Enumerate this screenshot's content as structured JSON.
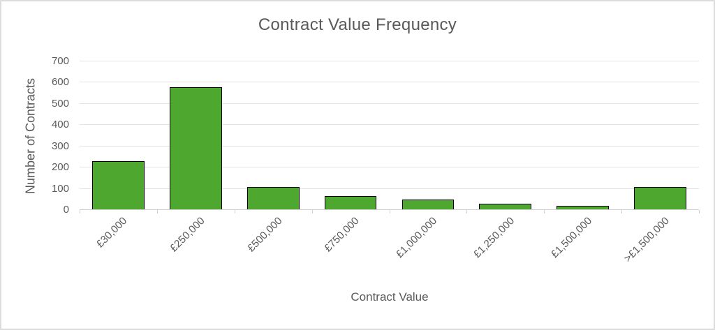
{
  "chart_data": {
    "type": "bar",
    "title": "Contract Value Frequency",
    "xlabel": "Contract Value",
    "ylabel": "Number of Contracts",
    "categories": [
      "£30,000",
      "£250,000",
      "£500,000",
      "£750,000",
      "£1,000,000",
      "£1,250,000",
      "£1,500,000",
      ">£1,500,000"
    ],
    "values": [
      230,
      580,
      110,
      65,
      50,
      30,
      20,
      110
    ],
    "ylim": [
      0,
      700
    ],
    "yticks": [
      "0",
      "100",
      "200",
      "300",
      "400",
      "500",
      "600",
      "700"
    ],
    "grid": true,
    "legend": false,
    "bar_width_fraction": 0.675,
    "colors": {
      "bar_fill": "#4ea72e",
      "bar_border": "#000000",
      "gridline": "#e2e2e2",
      "axis_line": "#d0d0d0",
      "text": "#595959",
      "frame_border": "#dcdcdc",
      "background": "#ffffff"
    }
  }
}
